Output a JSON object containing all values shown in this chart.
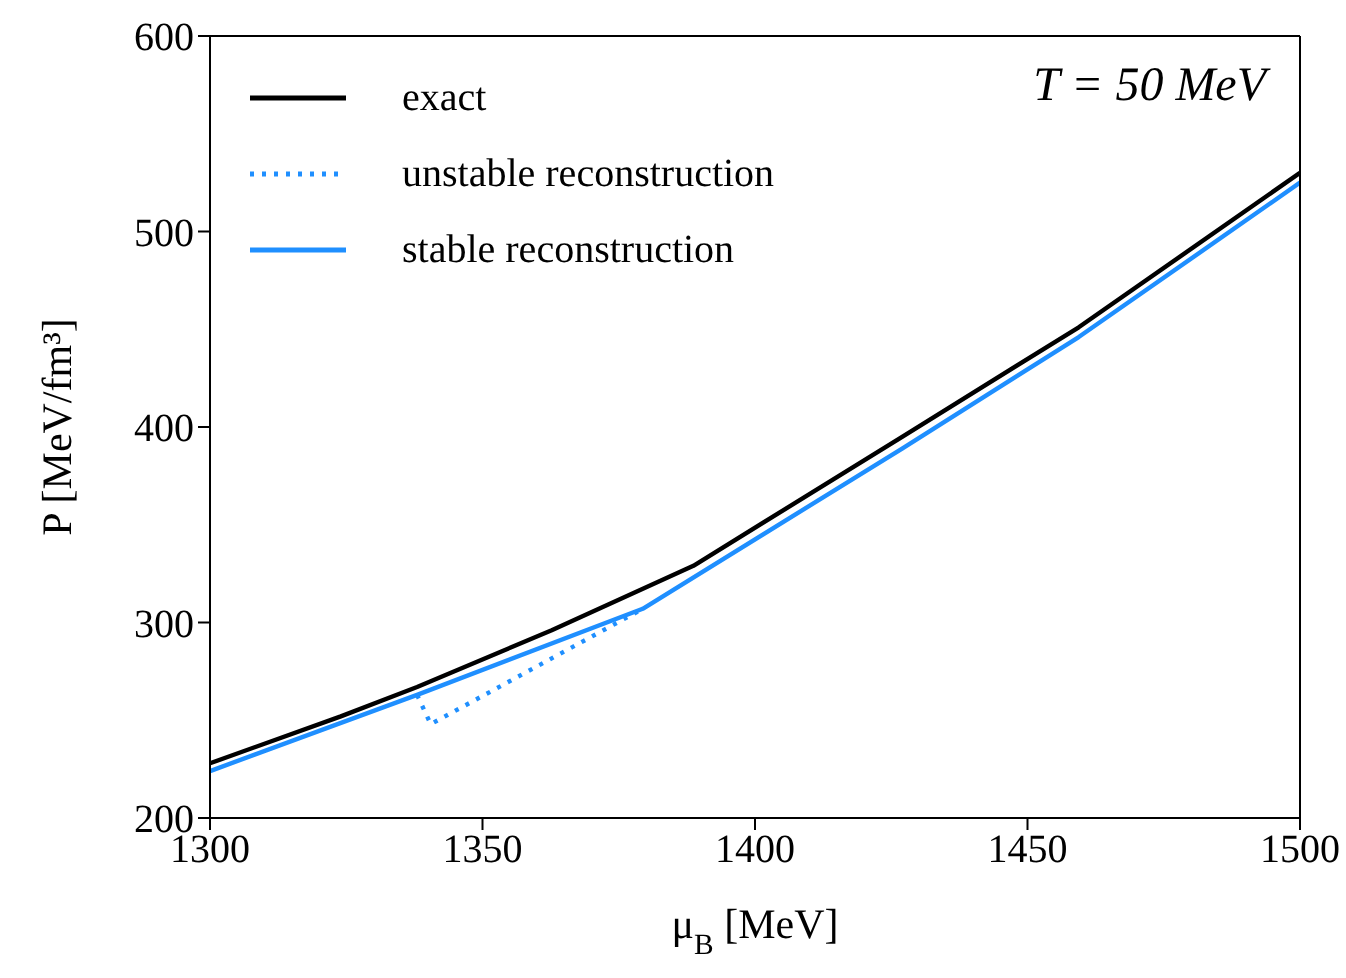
{
  "chart_data": {
    "type": "line",
    "xlabel": "μ$_{B}$ [MeV]",
    "ylabel": "P [MeV/fm³]",
    "annotations": [
      "T = 50 MeV"
    ],
    "xlim": [
      1300,
      1500
    ],
    "xticks": [
      1300,
      1350,
      1400,
      1450,
      1500
    ],
    "ylim": [
      200,
      600
    ],
    "yticks": [
      200,
      300,
      400,
      500,
      600
    ],
    "grid": false,
    "legend": "top left",
    "marker": "none",
    "series": [
      {
        "name": "exact",
        "color": "#000000",
        "line_style": "solid",
        "x": [
          1300,
          1324,
          1338,
          1362.7,
          1388.7,
          1427,
          1459.4,
          1500
        ],
        "values": [
          228,
          252,
          267,
          296,
          329,
          395,
          451,
          530
        ]
      },
      {
        "name": "unstable reconstruction",
        "color": "#1f8fff",
        "line_style": "dotted",
        "x": [
          1338,
          1340.5,
          1379.4
        ],
        "values": [
          263,
          248,
          307
        ]
      },
      {
        "name": "stable reconstruction",
        "color": "#1f8fff",
        "line_style": "solid",
        "x": [
          1300,
          1338,
          1379.4,
          1427,
          1459.4,
          1500
        ],
        "values": [
          224,
          263,
          307,
          389,
          446,
          525
        ]
      }
    ]
  }
}
